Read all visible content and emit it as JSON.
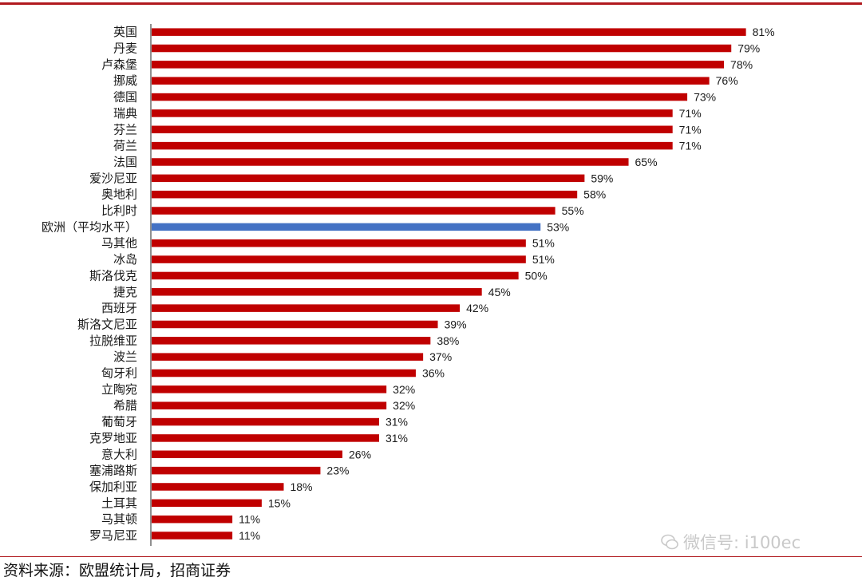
{
  "chart_data": {
    "type": "bar",
    "orientation": "horizontal",
    "categories": [
      "英国",
      "丹麦",
      "卢森堡",
      "挪威",
      "德国",
      "瑞典",
      "芬兰",
      "荷兰",
      "法国",
      "爱沙尼亚",
      "奥地利",
      "比利时",
      "欧洲（平均水平）",
      "马其他",
      "冰岛",
      "斯洛伐克",
      "捷克",
      "西班牙",
      "斯洛文尼亚",
      "拉脱维亚",
      "波兰",
      "匈牙利",
      "立陶宛",
      "希腊",
      "葡萄牙",
      "克罗地亚",
      "意大利",
      "塞浦路斯",
      "保加利亚",
      "土耳其",
      "马其顿",
      "罗马尼亚"
    ],
    "values": [
      81,
      79,
      78,
      76,
      73,
      71,
      71,
      71,
      65,
      59,
      58,
      55,
      53,
      51,
      51,
      50,
      45,
      42,
      39,
      38,
      37,
      36,
      32,
      32,
      31,
      31,
      26,
      23,
      18,
      15,
      11,
      11
    ],
    "value_labels": [
      "81%",
      "79%",
      "78%",
      "76%",
      "73%",
      "71%",
      "71%",
      "71%",
      "65%",
      "59%",
      "58%",
      "55%",
      "53%",
      "51%",
      "51%",
      "50%",
      "45%",
      "42%",
      "39%",
      "38%",
      "37%",
      "36%",
      "32%",
      "32%",
      "31%",
      "31%",
      "26%",
      "23%",
      "18%",
      "15%",
      "11%",
      "11%"
    ],
    "highlight_index": 12,
    "xlim": [
      0,
      83
    ],
    "grid": false,
    "legend": "none",
    "colors": {
      "bar": "#c00000",
      "highlight": "#4472c4"
    }
  },
  "source": "资料来源：欧盟统计局，招商证券",
  "watermark": "微信号: i100ec"
}
